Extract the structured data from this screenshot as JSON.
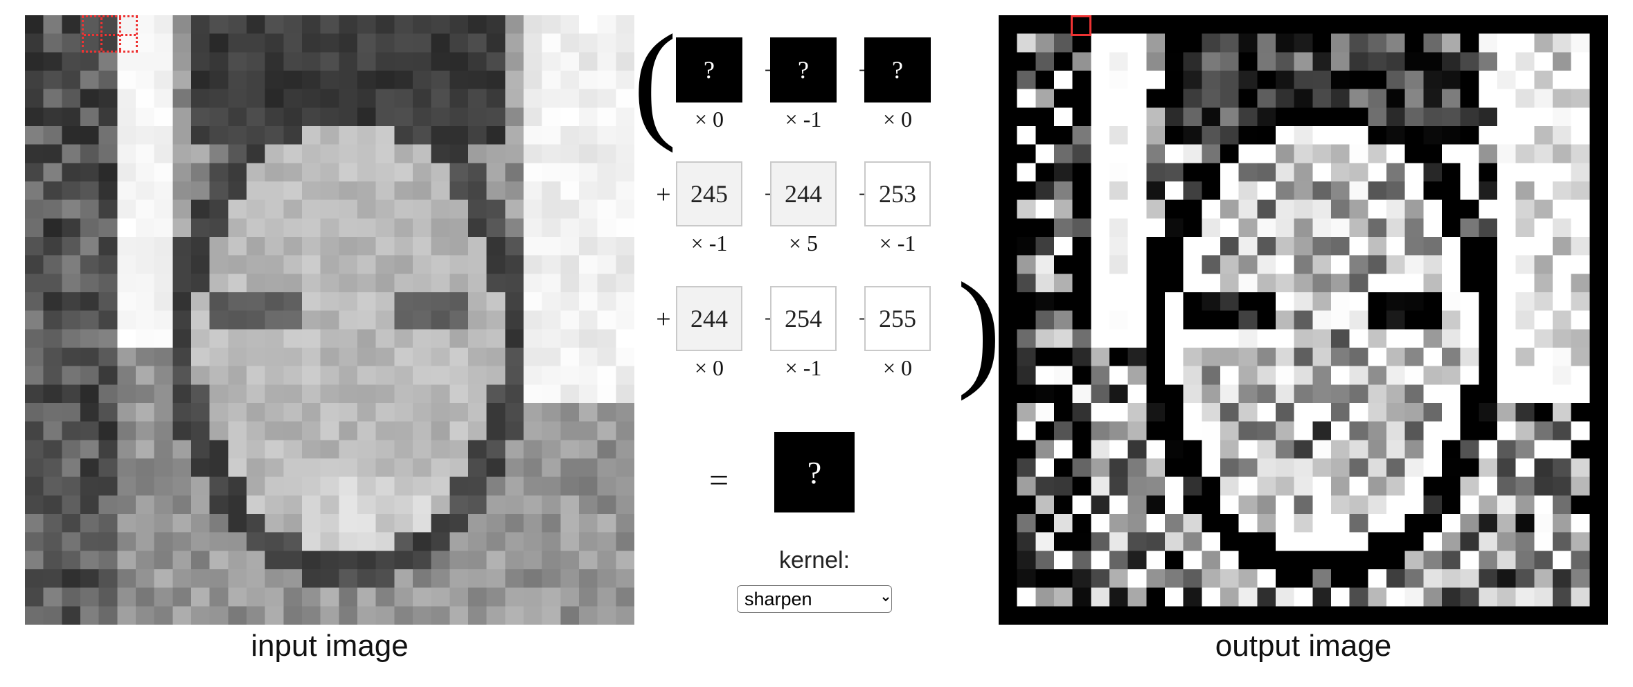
{
  "input_caption": "input image",
  "output_caption": "output image",
  "kernel_label": "kernel:",
  "kernel": {
    "selected": "sharpen",
    "options": [
      "sharpen"
    ]
  },
  "colors": {
    "highlight": "#e33333",
    "dark_cell": "#000000",
    "light_cell": "#f2f2f2"
  },
  "equation": {
    "rows": [
      [
        {
          "value": "?",
          "weight": "× 0",
          "style": "dark"
        },
        {
          "value": "?",
          "weight": "× -1",
          "style": "dark"
        },
        {
          "value": "?",
          "weight": "× 0",
          "style": "dark"
        }
      ],
      [
        {
          "value": "245",
          "weight": "× -1",
          "style": "light"
        },
        {
          "value": "244",
          "weight": "× 5",
          "style": "light"
        },
        {
          "value": "253",
          "weight": "× -1",
          "style": "white"
        }
      ],
      [
        {
          "value": "244",
          "weight": "× 0",
          "style": "light"
        },
        {
          "value": "254",
          "weight": "× -1",
          "style": "white"
        },
        {
          "value": "255",
          "weight": "× 0",
          "style": "white"
        }
      ]
    ],
    "plus": "+",
    "equals": "=",
    "result": "?"
  }
}
